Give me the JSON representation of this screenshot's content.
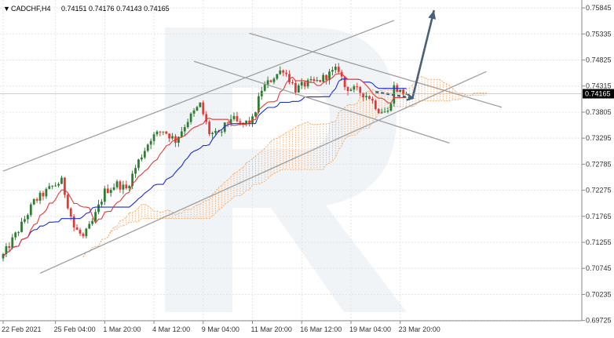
{
  "header": {
    "arrow": "▼",
    "symbol": "CADCHF,H4",
    "ohlc": "0.74151 0.74176 0.74143 0.74165"
  },
  "current_price_label": "0.74165",
  "watermark_colors": {
    "shape": "#e6ebf1"
  },
  "chart_data": {
    "type": "candlestick",
    "symbol": "CADCHF",
    "timeframe": "H4",
    "ylim": [
      0.6972,
      0.76
    ],
    "y_ticks": [
      0.75845,
      0.75335,
      0.74825,
      0.74315,
      0.73805,
      0.73295,
      0.72785,
      0.72275,
      0.71765,
      0.71255,
      0.70745,
      0.70235,
      0.69725
    ],
    "y_tick_labels": [
      "0.75845",
      "0.75335",
      "0.74825",
      "0.74315",
      "0.73805",
      "0.73295",
      "0.72785",
      "0.72275",
      "0.71765",
      "0.71255",
      "0.70745",
      "0.70235",
      "0.69725"
    ],
    "x_tick_labels": [
      "22 Feb 2021",
      "25 Feb 04:00",
      "1 Mar 20:00",
      "4 Mar 12:00",
      "9 Mar 04:00",
      "11 Mar 20:00",
      "16 Mar 12:00",
      "19 Mar 04:00",
      "23 Mar 20:00"
    ],
    "x_tick_index": [
      0,
      17,
      33,
      49,
      65,
      81,
      97,
      113,
      129
    ],
    "n_bars": 132,
    "last_price": 0.74165,
    "grid": true,
    "colors": {
      "bull": "#2e7d32",
      "bear": "#e53935",
      "tenkan": "#e53935",
      "kijun": "#1a2bd6",
      "cloud": "#f5a35c",
      "channel": "#9e9e9e",
      "forecast": "#4a6078",
      "grid": "#e4e4e4"
    },
    "waypoints": [
      [
        0,
        0.71
      ],
      [
        6,
        0.716
      ],
      [
        10,
        0.7205
      ],
      [
        16,
        0.7235
      ],
      [
        19,
        0.7245
      ],
      [
        23,
        0.7155
      ],
      [
        26,
        0.7135
      ],
      [
        29,
        0.7165
      ],
      [
        33,
        0.7225
      ],
      [
        37,
        0.724
      ],
      [
        40,
        0.723
      ],
      [
        44,
        0.7285
      ],
      [
        48,
        0.733
      ],
      [
        52,
        0.7345
      ],
      [
        56,
        0.7325
      ],
      [
        60,
        0.7365
      ],
      [
        64,
        0.7395
      ],
      [
        67,
        0.734
      ],
      [
        70,
        0.7335
      ],
      [
        74,
        0.737
      ],
      [
        77,
        0.7355
      ],
      [
        81,
        0.7365
      ],
      [
        84,
        0.7425
      ],
      [
        88,
        0.745
      ],
      [
        91,
        0.7465
      ],
      [
        95,
        0.7425
      ],
      [
        98,
        0.7435
      ],
      [
        102,
        0.744
      ],
      [
        106,
        0.7455
      ],
      [
        109,
        0.7465
      ],
      [
        111,
        0.743
      ],
      [
        116,
        0.742
      ],
      [
        119,
        0.741
      ],
      [
        122,
        0.7385
      ],
      [
        125,
        0.738
      ],
      [
        127,
        0.743
      ],
      [
        129,
        0.742
      ],
      [
        131,
        0.7416
      ]
    ],
    "ichimoku": {
      "tenkan_period": 9,
      "kijun_period": 26,
      "spanb_period": 52,
      "displacement": 26
    },
    "channel_lines": [
      {
        "name": "ascending-channel-upper",
        "p1": [
          0,
          0.7265
        ],
        "p2": [
          127,
          0.756
        ]
      },
      {
        "name": "ascending-channel-lower",
        "p1": [
          12,
          0.7065
        ],
        "p2": [
          157,
          0.746
        ]
      },
      {
        "name": "descending-channel-upper",
        "p1": [
          80,
          0.7535
        ],
        "p2": [
          162,
          0.739
        ]
      },
      {
        "name": "descending-channel-lower",
        "p1": [
          62,
          0.748
        ],
        "p2": [
          145,
          0.732
        ]
      }
    ],
    "forecast": {
      "dashed_from": [
        121,
        0.742
      ],
      "dashed_to": [
        133,
        0.7408
      ],
      "solid_to": [
        140,
        0.758
      ]
    }
  }
}
